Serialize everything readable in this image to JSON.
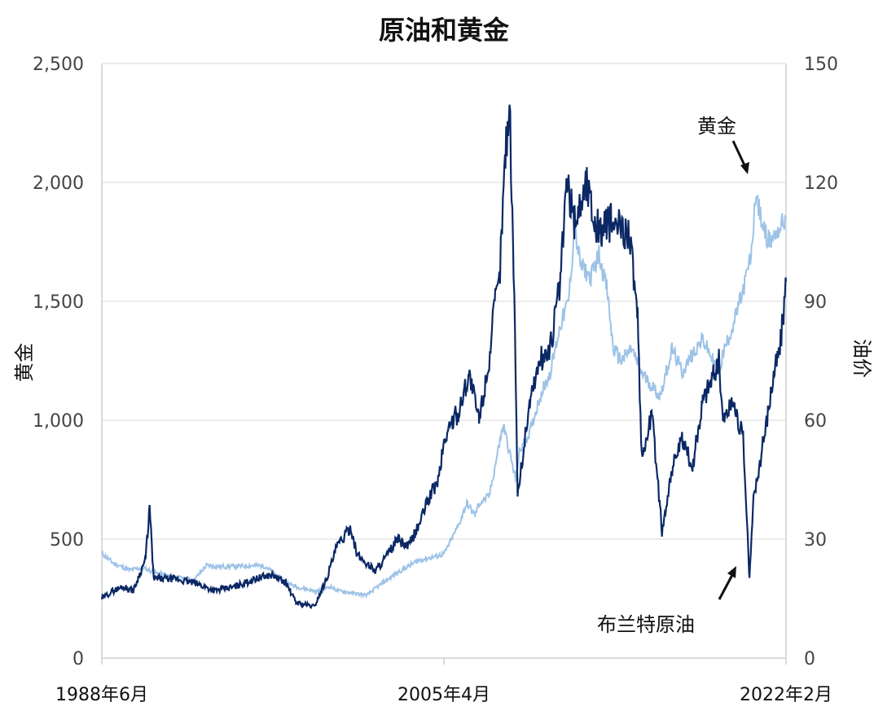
{
  "chart_data": {
    "type": "line",
    "title": "原油和黄金",
    "ylabel_left": "黄金",
    "ylabel_right": "油价",
    "x_tick_labels": [
      "1988年6月",
      "2005年4月",
      "2022年2月"
    ],
    "x_range": [
      1988.45,
      2022.1
    ],
    "ylim_left": [
      0,
      2500
    ],
    "ylim_right": [
      0,
      150
    ],
    "left_ticks": [
      "0",
      "500",
      "1,000",
      "1,500",
      "2,000",
      "2,500"
    ],
    "left_tick_values": [
      0,
      500,
      1000,
      1500,
      2000,
      2500
    ],
    "right_ticks": [
      "0",
      "30",
      "60",
      "90",
      "120",
      "150"
    ],
    "right_tick_values": [
      0,
      30,
      60,
      90,
      120,
      150
    ],
    "grid": true,
    "colors": {
      "gold": "#9dc3e6",
      "oil": "#0b2865"
    },
    "annotations": [
      {
        "text": "黄金",
        "series": "gold"
      },
      {
        "text": "布兰特原油",
        "series": "oil"
      }
    ],
    "series": [
      {
        "key": "gold",
        "axis": "left",
        "x": [
          1988.45,
          1989.0,
          1989.8,
          1990.5,
          1991.0,
          1992.0,
          1993.0,
          1993.6,
          1994.0,
          1995.0,
          1996.0,
          1996.5,
          1997.0,
          1997.5,
          1998.0,
          1999.0,
          1999.7,
          2000.0,
          2001.0,
          2001.5,
          2002.0,
          2003.0,
          2004.0,
          2005.0,
          2005.3,
          2006.0,
          2006.4,
          2006.8,
          2007.0,
          2007.5,
          2008.0,
          2008.2,
          2008.8,
          2009.0,
          2009.5,
          2010.0,
          2010.5,
          2011.0,
          2011.4,
          2011.7,
          2012.0,
          2012.5,
          2012.9,
          2013.3,
          2013.6,
          2014.0,
          2014.5,
          2015.0,
          2015.9,
          2016.5,
          2017.0,
          2017.5,
          2018.0,
          2018.8,
          2019.0,
          2019.5,
          2020.0,
          2020.4,
          2020.6,
          2021.0,
          2021.3,
          2021.7,
          2022.1
        ],
        "y": [
          440,
          400,
          370,
          380,
          360,
          340,
          330,
          390,
          385,
          385,
          390,
          385,
          350,
          320,
          300,
          280,
          300,
          285,
          270,
          265,
          300,
          360,
          410,
          430,
          440,
          560,
          650,
          600,
          650,
          680,
          900,
          980,
          750,
          870,
          950,
          1100,
          1200,
          1400,
          1500,
          1800,
          1650,
          1600,
          1700,
          1550,
          1300,
          1250,
          1300,
          1200,
          1100,
          1300,
          1200,
          1280,
          1340,
          1200,
          1280,
          1400,
          1550,
          1700,
          1950,
          1800,
          1750,
          1800,
          1850
        ]
      },
      {
        "key": "oil",
        "axis": "right",
        "x": [
          1988.45,
          1989.0,
          1989.5,
          1990.0,
          1990.6,
          1990.8,
          1991.0,
          1992.0,
          1993.0,
          1994.0,
          1995.0,
          1996.0,
          1996.8,
          1997.5,
          1998.0,
          1998.9,
          1999.5,
          2000.0,
          2000.7,
          2001.0,
          2001.9,
          2002.5,
          2003.0,
          2003.5,
          2004.0,
          2004.5,
          2005.0,
          2005.3,
          2005.7,
          2006.0,
          2006.5,
          2007.0,
          2007.5,
          2007.8,
          2008.0,
          2008.3,
          2008.5,
          2008.7,
          2008.9,
          2009.0,
          2009.5,
          2010.0,
          2010.5,
          2011.0,
          2011.3,
          2011.7,
          2012.0,
          2012.3,
          2012.7,
          2013.0,
          2013.5,
          2014.0,
          2014.4,
          2014.8,
          2015.0,
          2015.5,
          2015.9,
          2016.0,
          2016.5,
          2017.0,
          2017.5,
          2018.0,
          2018.8,
          2019.0,
          2019.5,
          2020.0,
          2020.3,
          2020.5,
          2021.0,
          2021.5,
          2021.8,
          2022.1
        ],
        "y": [
          15,
          17,
          18,
          17,
          25,
          38,
          20,
          20,
          19,
          17,
          18,
          20,
          21,
          19,
          14,
          13,
          20,
          28,
          33,
          26,
          22,
          26,
          30,
          28,
          33,
          40,
          45,
          55,
          60,
          62,
          72,
          60,
          75,
          90,
          95,
          128,
          140,
          100,
          42,
          45,
          65,
          75,
          78,
          95,
          120,
          110,
          115,
          120,
          110,
          108,
          110,
          108,
          108,
          85,
          50,
          62,
          38,
          32,
          48,
          55,
          48,
          65,
          75,
          60,
          65,
          55,
          20,
          40,
          55,
          72,
          78,
          95
        ]
      }
    ]
  }
}
